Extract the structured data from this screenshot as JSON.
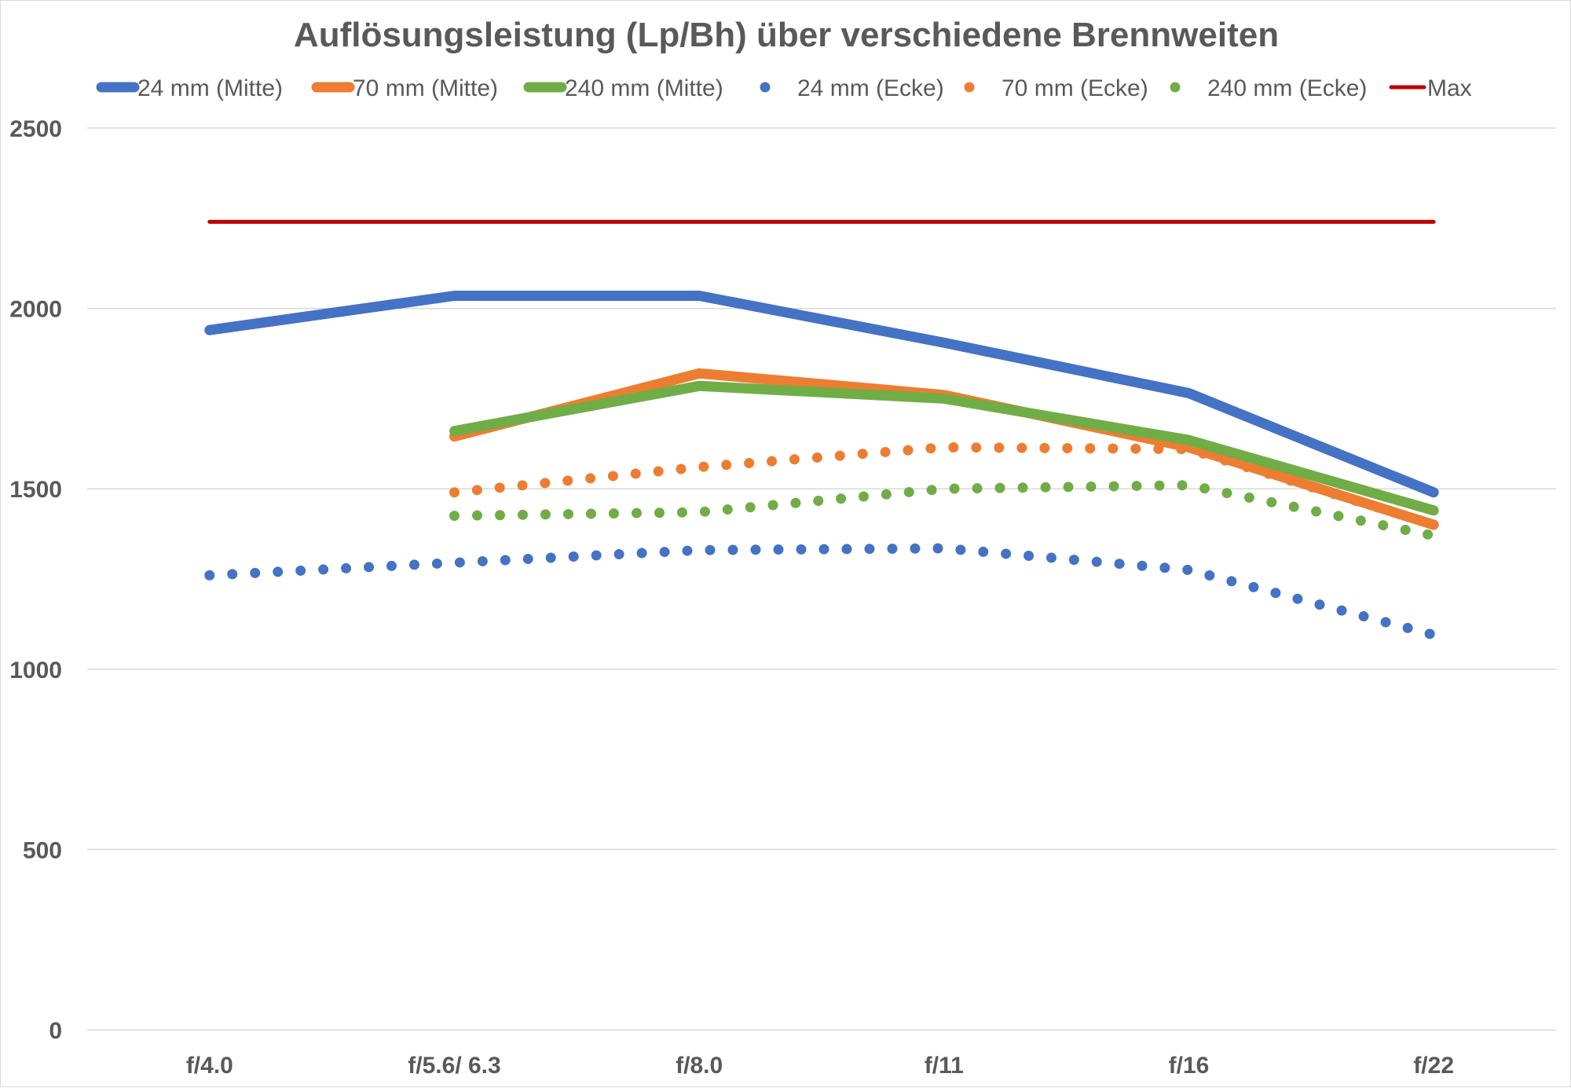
{
  "chart_data": {
    "type": "line",
    "title": "Auflösungsleistung (Lp/Bh) über verschiedene Brennweiten",
    "xlabel": "",
    "ylabel": "",
    "categories": [
      "f/4.0",
      "f/5.6/ 6.3",
      "f/8.0",
      "f/11",
      "f/16",
      "f/22"
    ],
    "ylim": [
      0,
      2500
    ],
    "yticks": [
      0,
      500,
      1000,
      1500,
      2000,
      2500
    ],
    "grid": true,
    "legend_position": "top",
    "series": [
      {
        "name": "24 mm (Mitte)",
        "style": "solid",
        "color": "#4472C4",
        "values": [
          1940,
          2035,
          2035,
          1905,
          1765,
          1490
        ]
      },
      {
        "name": "70 mm (Mitte)",
        "style": "solid",
        "color": "#ED7D31",
        "values": [
          null,
          1645,
          1820,
          1760,
          1615,
          1400
        ]
      },
      {
        "name": "240 mm (Mitte)",
        "style": "solid",
        "color": "#70AD47",
        "values": [
          null,
          1660,
          1785,
          1750,
          1635,
          1440
        ]
      },
      {
        "name": "24 mm (Ecke)",
        "style": "dotted",
        "color": "#4472C4",
        "values": [
          1260,
          1295,
          1330,
          1335,
          1275,
          1095
        ]
      },
      {
        "name": "70 mm (Ecke)",
        "style": "dotted",
        "color": "#ED7D31",
        "values": [
          null,
          1490,
          1560,
          1615,
          1610,
          1400
        ]
      },
      {
        "name": "240 mm (Ecke)",
        "style": "dotted",
        "color": "#70AD47",
        "values": [
          null,
          1425,
          1435,
          1500,
          1510,
          1370
        ]
      },
      {
        "name": "Max",
        "style": "solid-thin",
        "color": "#C00000",
        "values": [
          2240,
          2240,
          2240,
          2240,
          2240,
          2240
        ]
      }
    ]
  }
}
